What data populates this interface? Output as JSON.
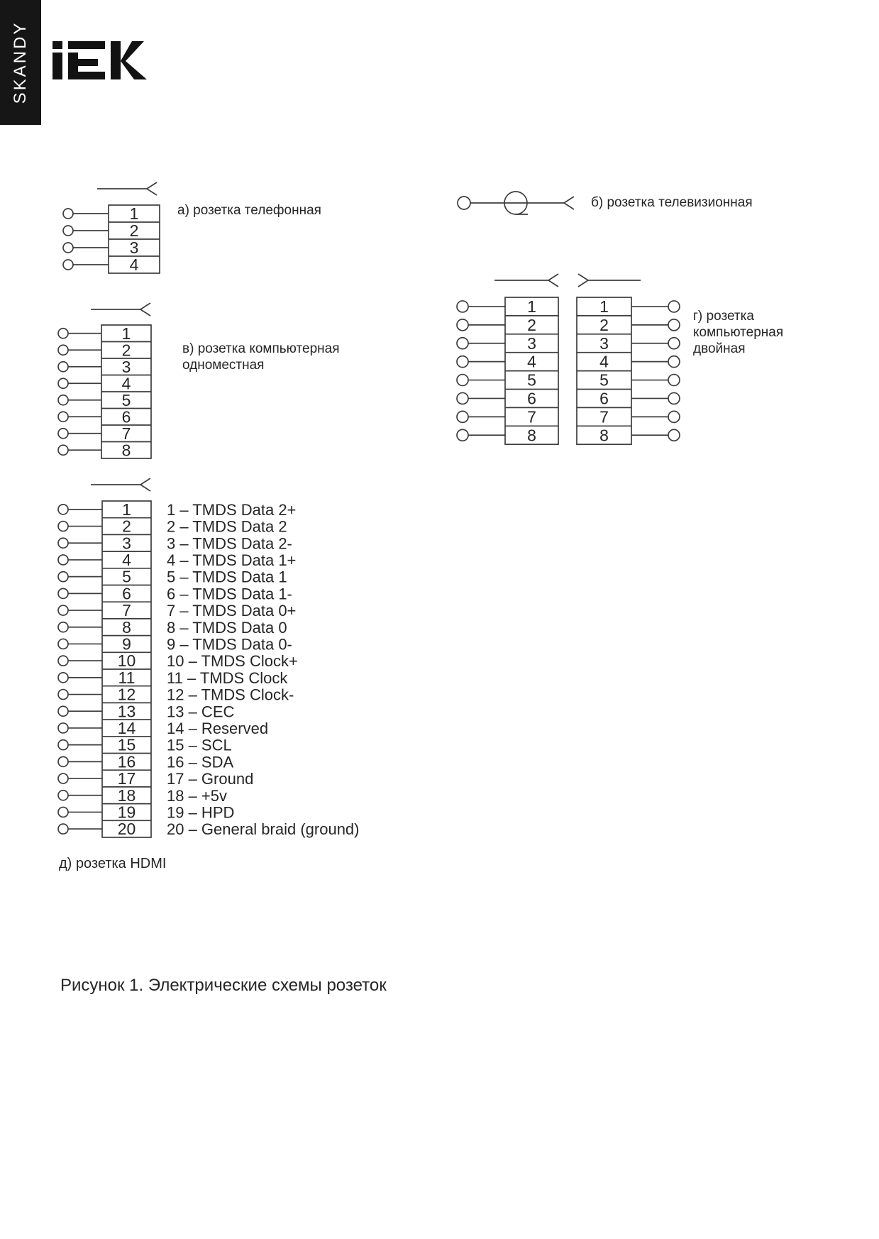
{
  "sidebar": {
    "brand": "SKANDY"
  },
  "logo": {
    "label": "IEK"
  },
  "figure": {
    "caption": "Рисунок 1. Электрические схемы розеток"
  },
  "diagrams": {
    "telephone": {
      "label": "а) розетка телефонная",
      "pins": [
        "1",
        "2",
        "3",
        "4"
      ]
    },
    "tv": {
      "label": "б) розетка телевизионная"
    },
    "computer_single": {
      "label_line1": "в) розетка компьютерная",
      "label_line2": "одноместная",
      "pins": [
        "1",
        "2",
        "3",
        "4",
        "5",
        "6",
        "7",
        "8"
      ]
    },
    "computer_double": {
      "label_line1": "г) розетка",
      "label_line2": "компьютерная",
      "label_line3": "двойная",
      "pins_left": [
        "1",
        "2",
        "3",
        "4",
        "5",
        "6",
        "7",
        "8"
      ],
      "pins_right": [
        "1",
        "2",
        "3",
        "4",
        "5",
        "6",
        "7",
        "8"
      ]
    },
    "hdmi": {
      "label": "д) розетка HDMI",
      "pins": [
        "1",
        "2",
        "3",
        "4",
        "5",
        "6",
        "7",
        "8",
        "9",
        "10",
        "11",
        "12",
        "13",
        "14",
        "15",
        "16",
        "17",
        "18",
        "19",
        "20"
      ],
      "pin_descriptions": [
        "1 – TMDS Data 2+",
        "2 – TMDS Data 2",
        "3 – TMDS Data 2-",
        "4 – TMDS Data 1+",
        "5 – TMDS Data 1",
        "6 – TMDS Data 1-",
        "7 – TMDS Data 0+",
        "8 – TMDS Data 0",
        "9 – TMDS Data 0-",
        "10 – TMDS Clock+",
        "11 – TMDS Clock",
        "12 – TMDS Clock-",
        "13 – CEC",
        "14 – Reserved",
        "15 – SCL",
        "16 – SDA",
        "17 – Ground",
        "18 – +5v",
        "19 – HPD",
        "20 – General braid (ground)"
      ]
    }
  },
  "colors": {
    "line": "#3d3d3d",
    "text": "#262626",
    "sidebar_bg": "#161616",
    "sidebar_text": "#ffffff",
    "logo": "#121212"
  }
}
